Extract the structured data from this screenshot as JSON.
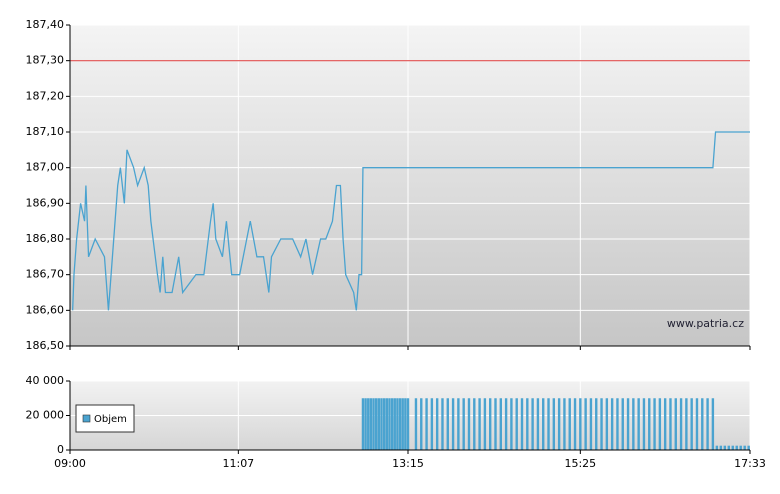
{
  "chart_data": [
    {
      "type": "line",
      "watermark": "www.patria.cz",
      "color": "#4aa3d0",
      "reference_line": 187.3,
      "reference_color": "#e05050",
      "x": [
        "09:02",
        "09:03",
        "09:05",
        "09:08",
        "09:11",
        "09:12",
        "09:14",
        "09:19",
        "09:26",
        "09:29",
        "09:32",
        "09:36",
        "09:38",
        "09:41",
        "09:43",
        "09:48",
        "09:51",
        "09:56",
        "09:59",
        "10:01",
        "10:06",
        "10:08",
        "10:10",
        "10:12",
        "10:17",
        "10:22",
        "10:25",
        "10:35",
        "10:41",
        "10:46",
        "10:48",
        "10:50",
        "10:55",
        "10:58",
        "11:02",
        "11:08",
        "11:16",
        "11:21",
        "11:26",
        "11:30",
        "11:32",
        "11:39",
        "11:48",
        "11:54",
        "11:58",
        "12:03",
        "12:09",
        "12:13",
        "12:18",
        "12:21",
        "12:24",
        "12:26",
        "12:28",
        "12:34",
        "12:36",
        "12:38",
        "12:40",
        "12:41",
        "17:05",
        "17:07",
        "17:33"
      ],
      "values": [
        186.6,
        186.7,
        186.8,
        186.9,
        186.85,
        186.95,
        186.75,
        186.8,
        186.75,
        186.6,
        186.75,
        186.95,
        187.0,
        186.9,
        187.05,
        187.0,
        186.95,
        187.0,
        186.95,
        186.85,
        186.7,
        186.65,
        186.75,
        186.65,
        186.65,
        186.75,
        186.65,
        186.7,
        186.7,
        186.85,
        186.9,
        186.8,
        186.75,
        186.85,
        186.7,
        186.7,
        186.85,
        186.75,
        186.75,
        186.65,
        186.75,
        186.8,
        186.8,
        186.75,
        186.8,
        186.7,
        186.8,
        186.8,
        186.85,
        186.95,
        186.95,
        186.8,
        186.7,
        186.65,
        186.6,
        186.7,
        186.7,
        187.0,
        187.0,
        187.1,
        187.1
      ],
      "xlim": [
        "09:00",
        "17:33"
      ],
      "ylim": [
        186.5,
        187.4
      ],
      "yticks": [
        {
          "value": 186.5,
          "label": "186,50"
        },
        {
          "value": 186.6,
          "label": "186,60"
        },
        {
          "value": 186.7,
          "label": "186,70"
        },
        {
          "value": 186.8,
          "label": "186,80"
        },
        {
          "value": 186.9,
          "label": "186,90"
        },
        {
          "value": 187.0,
          "label": "187,00"
        },
        {
          "value": 187.1,
          "label": "187,10"
        },
        {
          "value": 187.2,
          "label": "187,20"
        },
        {
          "value": 187.3,
          "label": "187,30"
        },
        {
          "value": 187.4,
          "label": "187,40"
        }
      ],
      "xticks": [
        "09:00",
        "11:07",
        "13:15",
        "15:25",
        "17:33"
      ],
      "grid": true
    },
    {
      "type": "bar",
      "color": "#4aa3d0",
      "legend_position": "left",
      "series": [
        {
          "name": "Objem",
          "color": "#4aa3d0",
          "x": [
            "12:41",
            "12:43",
            "12:45",
            "12:47",
            "12:49",
            "12:51",
            "12:53",
            "12:55",
            "12:57",
            "12:59",
            "13:01",
            "13:03",
            "13:05",
            "13:07",
            "13:09",
            "13:11",
            "13:13",
            "13:15",
            "13:21",
            "13:25",
            "13:29",
            "13:33",
            "13:37",
            "13:41",
            "13:45",
            "13:49",
            "13:53",
            "13:57",
            "14:01",
            "14:05",
            "14:09",
            "14:13",
            "14:17",
            "14:21",
            "14:25",
            "14:29",
            "14:33",
            "14:37",
            "14:41",
            "14:45",
            "14:49",
            "14:53",
            "14:57",
            "15:01",
            "15:05",
            "15:09",
            "15:13",
            "15:17",
            "15:21",
            "15:25",
            "15:29",
            "15:33",
            "15:37",
            "15:41",
            "15:45",
            "15:49",
            "15:53",
            "15:57",
            "16:01",
            "16:05",
            "16:09",
            "16:13",
            "16:17",
            "16:21",
            "16:25",
            "16:29",
            "16:33",
            "16:37",
            "16:41",
            "16:45",
            "16:49",
            "16:53",
            "16:57",
            "17:01",
            "17:05",
            "17:08",
            "17:11",
            "17:14",
            "17:17",
            "17:20",
            "17:23",
            "17:26",
            "17:29",
            "17:32"
          ],
          "values": [
            30000,
            30000,
            30000,
            30000,
            30000,
            30000,
            30000,
            30000,
            30000,
            30000,
            30000,
            30000,
            30000,
            30000,
            30000,
            30000,
            30000,
            30000,
            30000,
            30000,
            30000,
            30000,
            30000,
            30000,
            30000,
            30000,
            30000,
            30000,
            30000,
            30000,
            30000,
            30000,
            30000,
            30000,
            30000,
            30000,
            30000,
            30000,
            30000,
            30000,
            30000,
            30000,
            30000,
            30000,
            30000,
            30000,
            30000,
            30000,
            30000,
            30000,
            30000,
            30000,
            30000,
            30000,
            30000,
            30000,
            30000,
            30000,
            30000,
            30000,
            30000,
            30000,
            30000,
            30000,
            30000,
            30000,
            30000,
            30000,
            30000,
            30000,
            30000,
            30000,
            30000,
            30000,
            30000,
            2500,
            2500,
            2500,
            2500,
            2500,
            2500,
            2500,
            2500,
            2500
          ]
        }
      ],
      "xlim": [
        "09:00",
        "17:33"
      ],
      "ylim": [
        0,
        40000
      ],
      "yticks": [
        0,
        {
          "value": 20000,
          "label": "20 000"
        },
        {
          "value": 40000,
          "label": "40 000"
        }
      ],
      "xticks": [
        "09:00",
        "11:07",
        "13:15",
        "15:25",
        "17:33"
      ],
      "grid": true
    }
  ]
}
